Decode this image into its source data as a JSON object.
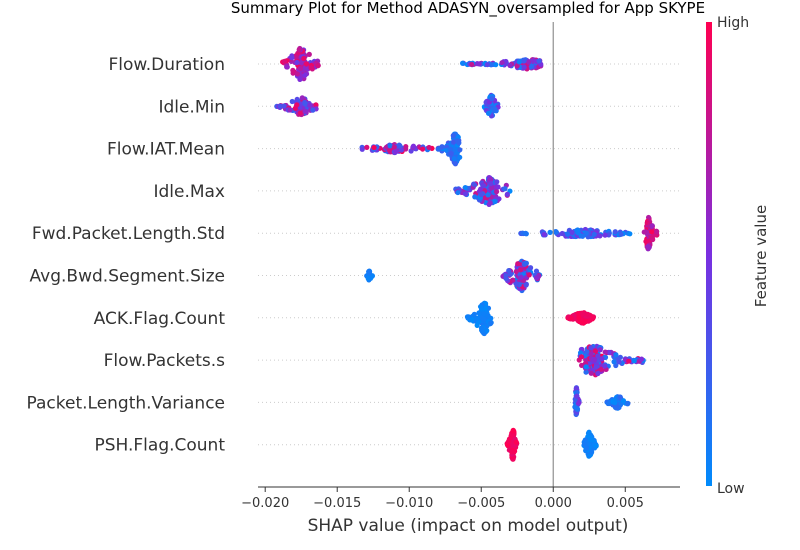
{
  "chart_data": {
    "type": "scatter",
    "subtype": "shap-beeswarm",
    "title": "Summary Plot for Method ADASYN_oversampled for App SKYPE",
    "xlabel": "SHAP value (impact on model output)",
    "xlim": [
      -0.0205,
      0.0088
    ],
    "xticks": [
      -0.02,
      -0.015,
      -0.01,
      -0.005,
      0.0,
      0.005
    ],
    "xtick_labels": [
      "−0.020",
      "−0.015",
      "−0.010",
      "−0.005",
      "0.000",
      "0.005"
    ],
    "zero_line": 0.0,
    "colorbar": {
      "title": "Feature value",
      "high_label": "High",
      "low_label": "Low",
      "low_color": "#008bfb",
      "high_color": "#ff0051"
    },
    "features": [
      {
        "name": "Flow.Duration",
        "clusters": [
          {
            "center": -0.0175,
            "range": [
              -0.0188,
              -0.0163
            ],
            "spread": 17,
            "count": 120,
            "color_low": 0.4,
            "color_high": 0.95
          },
          {
            "center": -0.0018,
            "range": [
              -0.0063,
              -0.0005
            ],
            "spread": 5,
            "count": 150,
            "color_low": 0.0,
            "color_high": 0.85
          }
        ]
      },
      {
        "name": "Idle.Min",
        "clusters": [
          {
            "center": -0.0175,
            "range": [
              -0.0192,
              -0.0163
            ],
            "spread": 9,
            "count": 110,
            "color_low": 0.2,
            "color_high": 0.95
          },
          {
            "center": -0.0043,
            "range": [
              -0.0048,
              -0.0038
            ],
            "spread": 12,
            "count": 60,
            "color_low": 0.0,
            "color_high": 0.5
          }
        ]
      },
      {
        "name": "Flow.IAT.Mean",
        "clusters": [
          {
            "center": -0.011,
            "range": [
              -0.0133,
              -0.0072
            ],
            "spread": 4,
            "count": 90,
            "color_low": 0.1,
            "color_high": 1.0
          },
          {
            "center": -0.0068,
            "range": [
              -0.0078,
              -0.0064
            ],
            "spread": 16,
            "count": 80,
            "color_low": 0.0,
            "color_high": 0.3
          }
        ]
      },
      {
        "name": "Idle.Max",
        "clusters": [
          {
            "center": -0.0045,
            "range": [
              -0.0068,
              -0.003
            ],
            "spread": 14,
            "count": 140,
            "color_low": 0.0,
            "color_high": 0.8
          }
        ]
      },
      {
        "name": "Fwd.Packet.Length.Std",
        "clusters": [
          {
            "center": 0.002,
            "range": [
              -0.003,
              0.0055
            ],
            "spread": 4,
            "count": 120,
            "color_low": 0.0,
            "color_high": 0.5
          },
          {
            "center": 0.0066,
            "range": [
              0.0063,
              0.0072
            ],
            "spread": 17,
            "count": 80,
            "color_low": 0.6,
            "color_high": 1.0
          }
        ]
      },
      {
        "name": "Avg.Bwd.Segment.Size",
        "clusters": [
          {
            "center": -0.0128,
            "range": [
              -0.013,
              -0.0125
            ],
            "spread": 5,
            "count": 20,
            "color_low": 0.0,
            "color_high": 0.1
          },
          {
            "center": -0.0022,
            "range": [
              -0.0035,
              -0.0008
            ],
            "spread": 16,
            "count": 140,
            "color_low": 0.0,
            "color_high": 0.9
          }
        ]
      },
      {
        "name": "ACK.Flag.Count",
        "clusters": [
          {
            "center": -0.0048,
            "range": [
              -0.006,
              -0.0043
            ],
            "spread": 16,
            "count": 110,
            "color_low": 0.0,
            "color_high": 0.1
          },
          {
            "center": 0.002,
            "range": [
              0.001,
              0.0028
            ],
            "spread": 6,
            "count": 100,
            "color_low": 0.9,
            "color_high": 1.0
          }
        ]
      },
      {
        "name": "Flow.Packets.s",
        "clusters": [
          {
            "center": 0.0028,
            "range": [
              0.0018,
              0.0064
            ],
            "spread": 16,
            "count": 170,
            "color_low": 0.0,
            "color_high": 1.0
          }
        ]
      },
      {
        "name": "Packet.Length.Variance",
        "clusters": [
          {
            "center": 0.0016,
            "range": [
              0.0015,
              0.0018
            ],
            "spread": 16,
            "count": 60,
            "color_low": 0.0,
            "color_high": 0.6
          },
          {
            "center": 0.0045,
            "range": [
              0.0037,
              0.0052
            ],
            "spread": 7,
            "count": 50,
            "color_low": 0.0,
            "color_high": 0.2
          }
        ]
      },
      {
        "name": "PSH.Flag.Count",
        "clusters": [
          {
            "center": -0.0028,
            "range": [
              -0.0032,
              -0.0025
            ],
            "spread": 16,
            "count": 80,
            "color_low": 0.9,
            "color_high": 1.0
          },
          {
            "center": 0.0025,
            "range": [
              0.0021,
              0.003
            ],
            "spread": 14,
            "count": 80,
            "color_low": 0.0,
            "color_high": 0.1
          }
        ]
      }
    ]
  }
}
